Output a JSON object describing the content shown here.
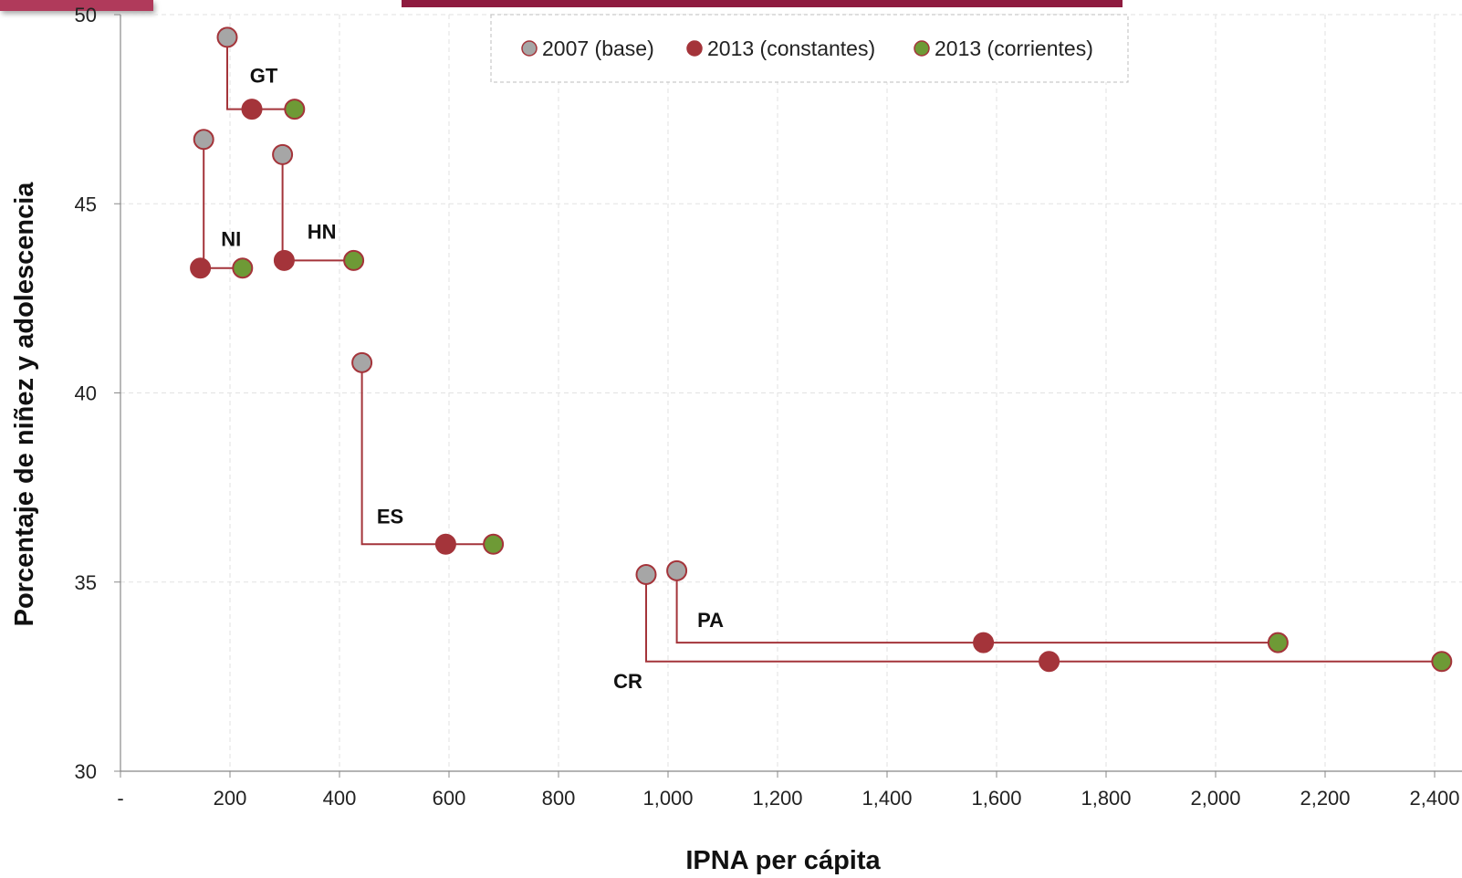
{
  "chart_data": {
    "type": "scatter",
    "title": "",
    "xlabel": "IPNA per cápita",
    "ylabel": "Porcentaje de niñez y adolescencia",
    "xlim": [
      0,
      2450
    ],
    "ylim": [
      30,
      50
    ],
    "x_ticks": [
      {
        "value": 0,
        "label": "-"
      },
      {
        "value": 200,
        "label": "200"
      },
      {
        "value": 400,
        "label": "400"
      },
      {
        "value": 600,
        "label": "600"
      },
      {
        "value": 800,
        "label": "800"
      },
      {
        "value": 1000,
        "label": "1,000"
      },
      {
        "value": 1200,
        "label": "1,200"
      },
      {
        "value": 1400,
        "label": "1,400"
      },
      {
        "value": 1600,
        "label": "1,600"
      },
      {
        "value": 1800,
        "label": "1,800"
      },
      {
        "value": 2000,
        "label": "2,000"
      },
      {
        "value": 2200,
        "label": "2,200"
      },
      {
        "value": 2400,
        "label": "2,400"
      }
    ],
    "y_ticks": [
      {
        "value": 30,
        "label": "30"
      },
      {
        "value": 35,
        "label": "35"
      },
      {
        "value": 40,
        "label": "40"
      },
      {
        "value": 45,
        "label": "45"
      },
      {
        "value": 50,
        "label": "50"
      }
    ],
    "grid": true,
    "legend_position": "top-center",
    "legend": [
      {
        "name": "2007 (base)",
        "color": "#a6a6a6"
      },
      {
        "name": "2013 (constantes)",
        "color": "#a4343a"
      },
      {
        "name": "2013 (corrientes)",
        "color": "#6e9a36"
      }
    ],
    "marker_stroke": "#a4343a",
    "connector_color": "#a4343a",
    "countries": [
      {
        "label": "GT",
        "base": [
          195,
          49.4
        ],
        "constantes": [
          240,
          47.5
        ],
        "corrientes": [
          318,
          47.5
        ]
      },
      {
        "label": "NI",
        "base": [
          152,
          46.7
        ],
        "constantes": [
          146,
          43.3
        ],
        "corrientes": [
          223,
          43.3
        ]
      },
      {
        "label": "HN",
        "base": [
          296,
          46.3
        ],
        "constantes": [
          299,
          43.5
        ],
        "corrientes": [
          426,
          43.5
        ]
      },
      {
        "label": "ES",
        "base": [
          441,
          40.8
        ],
        "constantes": [
          594,
          36.0
        ],
        "corrientes": [
          681,
          36.0
        ]
      },
      {
        "label": "CR",
        "base": [
          960,
          35.2
        ],
        "constantes": [
          1696,
          32.9
        ],
        "corrientes": [
          2413,
          32.9
        ]
      },
      {
        "label": "PA",
        "base": [
          1016,
          35.3
        ],
        "constantes": [
          1576,
          33.4
        ],
        "corrientes": [
          2114,
          33.4
        ]
      }
    ]
  }
}
